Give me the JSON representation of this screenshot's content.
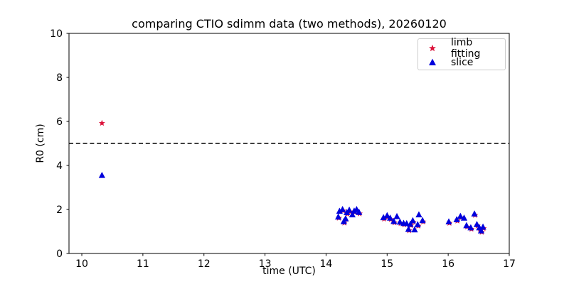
{
  "window": {
    "background": "#ffffff"
  },
  "chart_data": {
    "type": "scatter",
    "title": "comparing CTIO sdimm data (two methods), 20260120",
    "xlabel": "time (UTC)",
    "ylabel": "R0 (cm)",
    "xlim": [
      9.79,
      17.0
    ],
    "ylim": [
      0,
      10
    ],
    "xticks": [
      10,
      11,
      12,
      13,
      14,
      15,
      16,
      17
    ],
    "yticks": [
      0,
      2,
      4,
      6,
      8,
      10
    ],
    "grid": false,
    "threshold_line": {
      "y": 5,
      "style": "dashed",
      "color": "#000000"
    },
    "legend": {
      "position": "upper right",
      "items": [
        {
          "label": "limb fitting",
          "marker": "star",
          "color": "#DC143C"
        },
        {
          "label": "slice",
          "marker": "triangle-up",
          "color": "#0000DC"
        }
      ]
    },
    "series": [
      {
        "name": "limb fitting",
        "marker": "star",
        "color": "#DC143C",
        "points": [
          [
            10.33,
            5.92
          ],
          [
            14.21,
            1.61
          ],
          [
            14.28,
            1.94
          ],
          [
            14.3,
            1.39
          ],
          [
            14.35,
            1.8
          ],
          [
            14.39,
            1.9
          ],
          [
            14.47,
            1.87
          ],
          [
            14.55,
            1.81
          ],
          [
            14.95,
            1.57
          ],
          [
            15.01,
            1.66
          ],
          [
            15.06,
            1.55
          ],
          [
            15.12,
            1.4
          ],
          [
            15.22,
            1.37
          ],
          [
            15.28,
            1.31
          ],
          [
            15.36,
            1.04
          ],
          [
            15.39,
            1.27
          ],
          [
            15.43,
            1.43
          ],
          [
            15.51,
            1.25
          ],
          [
            15.59,
            1.44
          ],
          [
            16.02,
            1.38
          ],
          [
            16.15,
            1.48
          ],
          [
            16.21,
            1.63
          ],
          [
            16.31,
            1.21
          ],
          [
            16.38,
            1.11
          ],
          [
            16.44,
            1.74
          ],
          [
            16.48,
            1.26
          ],
          [
            16.52,
            1.11
          ],
          [
            16.55,
            0.97
          ],
          [
            16.58,
            1.14
          ]
        ]
      },
      {
        "name": "slice",
        "marker": "triangle-up",
        "color": "#0000DC",
        "points": [
          [
            10.33,
            3.55
          ],
          [
            14.2,
            1.66
          ],
          [
            14.22,
            1.92
          ],
          [
            14.27,
            2.0
          ],
          [
            14.29,
            1.45
          ],
          [
            14.32,
            1.58
          ],
          [
            14.34,
            1.86
          ],
          [
            14.38,
            1.97
          ],
          [
            14.43,
            1.76
          ],
          [
            14.46,
            1.93
          ],
          [
            14.5,
            2.0
          ],
          [
            14.54,
            1.87
          ],
          [
            14.94,
            1.63
          ],
          [
            15.0,
            1.72
          ],
          [
            15.05,
            1.61
          ],
          [
            15.11,
            1.46
          ],
          [
            15.16,
            1.68
          ],
          [
            15.21,
            1.43
          ],
          [
            15.27,
            1.37
          ],
          [
            15.32,
            1.36
          ],
          [
            15.35,
            1.1
          ],
          [
            15.38,
            1.33
          ],
          [
            15.42,
            1.49
          ],
          [
            15.45,
            1.08
          ],
          [
            15.5,
            1.31
          ],
          [
            15.52,
            1.76
          ],
          [
            15.58,
            1.5
          ],
          [
            16.01,
            1.44
          ],
          [
            16.14,
            1.54
          ],
          [
            16.2,
            1.69
          ],
          [
            16.26,
            1.61
          ],
          [
            16.3,
            1.27
          ],
          [
            16.37,
            1.17
          ],
          [
            16.43,
            1.8
          ],
          [
            16.47,
            1.32
          ],
          [
            16.51,
            1.17
          ],
          [
            16.54,
            1.03
          ],
          [
            16.57,
            1.2
          ]
        ]
      }
    ]
  }
}
